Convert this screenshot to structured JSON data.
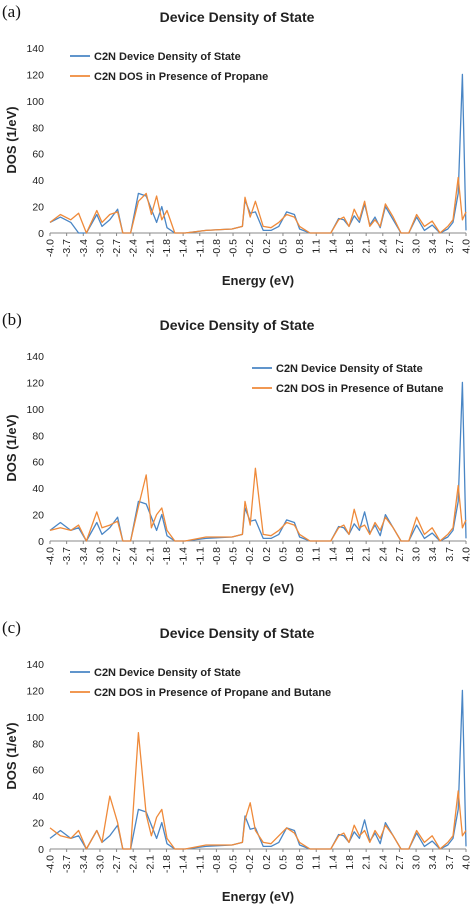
{
  "chart_data": [
    {
      "panel_label": "(a)",
      "type": "line",
      "title": "Device Density of State",
      "xlabel": "Energy (eV)",
      "ylabel": "DOS (1/eV)",
      "ylim": [
        0,
        140
      ],
      "xlim": [
        -4.0,
        4.0
      ],
      "yticks": [
        "0",
        "20",
        "40",
        "60",
        "80",
        "100",
        "120",
        "140"
      ],
      "xticks": [
        "-4.0",
        "-3.7",
        "-3.4",
        "-3.0",
        "-2.7",
        "-2.4",
        "-2.1",
        "-1.8",
        "-1.4",
        "-1.1",
        "-0.8",
        "-0.5",
        "-0.2",
        "0.2",
        "0.5",
        "0.8",
        "1.1",
        "1.4",
        "1.8",
        "2.1",
        "2.4",
        "2.7",
        "3.0",
        "3.4",
        "3.7",
        "4.0"
      ],
      "grid": false,
      "legend_position": "top-left",
      "series": [
        {
          "name": "C2N Device Density of State",
          "color": "#4a86c5",
          "x": [
            -4.0,
            -3.8,
            -3.6,
            -3.45,
            -3.3,
            -3.1,
            -3.0,
            -2.85,
            -2.7,
            -2.6,
            -2.45,
            -2.3,
            -2.15,
            -2.05,
            -1.95,
            -1.85,
            -1.75,
            -1.6,
            -1.4,
            -1.0,
            -0.5,
            -0.3,
            -0.25,
            -0.15,
            -0.05,
            0.1,
            0.25,
            0.4,
            0.55,
            0.7,
            0.8,
            1.0,
            1.2,
            1.4,
            1.55,
            1.65,
            1.75,
            1.85,
            1.95,
            2.05,
            2.15,
            2.25,
            2.35,
            2.45,
            2.6,
            2.75,
            2.9,
            3.05,
            3.2,
            3.35,
            3.5,
            3.65,
            3.75,
            3.85,
            3.93,
            4.0
          ],
          "y": [
            8,
            12,
            8,
            0,
            0,
            14,
            5,
            10,
            18,
            0,
            0,
            30,
            28,
            18,
            8,
            20,
            4,
            0,
            0,
            2,
            3,
            5,
            25,
            15,
            16,
            2,
            2,
            5,
            16,
            14,
            3,
            0,
            0,
            0,
            11,
            10,
            5,
            13,
            8,
            22,
            6,
            12,
            4,
            20,
            10,
            0,
            0,
            12,
            2,
            6,
            0,
            3,
            8,
            30,
            120,
            2
          ]
        },
        {
          "name": "C2N DOS in Presence of Propane",
          "color": "#ef8a3a",
          "x": [
            -4.0,
            -3.8,
            -3.6,
            -3.45,
            -3.3,
            -3.1,
            -3.0,
            -2.85,
            -2.7,
            -2.6,
            -2.45,
            -2.3,
            -2.15,
            -2.05,
            -1.95,
            -1.85,
            -1.75,
            -1.6,
            -1.4,
            -1.0,
            -0.5,
            -0.3,
            -0.25,
            -0.15,
            -0.05,
            0.1,
            0.25,
            0.4,
            0.55,
            0.7,
            0.8,
            1.0,
            1.2,
            1.4,
            1.55,
            1.65,
            1.75,
            1.85,
            1.95,
            2.05,
            2.15,
            2.25,
            2.35,
            2.45,
            2.6,
            2.75,
            2.9,
            3.05,
            3.2,
            3.35,
            3.5,
            3.65,
            3.75,
            3.85,
            3.93,
            4.0
          ],
          "y": [
            8,
            14,
            10,
            15,
            0,
            17,
            8,
            14,
            16,
            0,
            0,
            24,
            30,
            14,
            28,
            10,
            17,
            0,
            0,
            2,
            3,
            5,
            27,
            12,
            24,
            5,
            4,
            8,
            14,
            12,
            5,
            0,
            0,
            0,
            10,
            12,
            5,
            18,
            10,
            24,
            5,
            10,
            5,
            22,
            12,
            0,
            0,
            14,
            5,
            9,
            0,
            5,
            10,
            42,
            10,
            16
          ]
        }
      ]
    },
    {
      "panel_label": "(b)",
      "type": "line",
      "title": "Device Density of State",
      "xlabel": "Energy (eV)",
      "ylabel": "DOS (1/eV)",
      "ylim": [
        0,
        140
      ],
      "xlim": [
        -4.0,
        4.0
      ],
      "yticks": [
        "0",
        "20",
        "40",
        "60",
        "80",
        "100",
        "120",
        "140"
      ],
      "xticks": [
        "-4.0",
        "-3.7",
        "-3.4",
        "-3.0",
        "-2.7",
        "-2.4",
        "-2.1",
        "-1.8",
        "-1.4",
        "-1.1",
        "-0.8",
        "-0.5",
        "-0.2",
        "0.2",
        "0.5",
        "0.8",
        "1.1",
        "1.4",
        "1.8",
        "2.1",
        "2.4",
        "2.7",
        "3.0",
        "3.4",
        "3.7",
        "4.0"
      ],
      "grid": false,
      "legend_position": "top-right",
      "series": [
        {
          "name": "C2N Device Density of State",
          "color": "#4a86c5",
          "x": [
            -4.0,
            -3.8,
            -3.6,
            -3.45,
            -3.3,
            -3.1,
            -3.0,
            -2.85,
            -2.7,
            -2.6,
            -2.45,
            -2.3,
            -2.15,
            -2.05,
            -1.95,
            -1.85,
            -1.75,
            -1.6,
            -1.4,
            -1.0,
            -0.5,
            -0.3,
            -0.25,
            -0.15,
            -0.05,
            0.1,
            0.25,
            0.4,
            0.55,
            0.7,
            0.8,
            1.0,
            1.2,
            1.4,
            1.55,
            1.65,
            1.75,
            1.85,
            1.95,
            2.05,
            2.15,
            2.25,
            2.35,
            2.45,
            2.6,
            2.75,
            2.9,
            3.05,
            3.2,
            3.35,
            3.5,
            3.65,
            3.75,
            3.85,
            3.93,
            4.0
          ],
          "y": [
            8,
            14,
            8,
            10,
            0,
            14,
            5,
            10,
            18,
            0,
            0,
            30,
            28,
            18,
            8,
            20,
            4,
            0,
            0,
            2,
            3,
            5,
            25,
            15,
            16,
            2,
            2,
            5,
            16,
            14,
            3,
            0,
            0,
            0,
            11,
            10,
            5,
            13,
            8,
            22,
            6,
            12,
            4,
            20,
            10,
            0,
            0,
            12,
            2,
            6,
            0,
            3,
            8,
            30,
            120,
            2
          ]
        },
        {
          "name": "C2N DOS in Presence of Butane",
          "color": "#ef8a3a",
          "x": [
            -4.0,
            -3.8,
            -3.6,
            -3.45,
            -3.3,
            -3.1,
            -3.0,
            -2.85,
            -2.7,
            -2.6,
            -2.45,
            -2.3,
            -2.15,
            -2.05,
            -1.95,
            -1.85,
            -1.75,
            -1.6,
            -1.4,
            -1.0,
            -0.5,
            -0.3,
            -0.25,
            -0.15,
            -0.05,
            0.1,
            0.25,
            0.4,
            0.55,
            0.7,
            0.8,
            1.0,
            1.2,
            1.4,
            1.55,
            1.65,
            1.75,
            1.85,
            1.95,
            2.05,
            2.15,
            2.25,
            2.35,
            2.45,
            2.6,
            2.75,
            2.9,
            3.05,
            3.2,
            3.35,
            3.5,
            3.65,
            3.75,
            3.85,
            3.93,
            4.0
          ],
          "y": [
            8,
            10,
            8,
            12,
            0,
            22,
            10,
            12,
            15,
            0,
            0,
            26,
            50,
            10,
            20,
            25,
            8,
            0,
            0,
            3,
            3,
            5,
            30,
            12,
            55,
            5,
            4,
            8,
            14,
            12,
            5,
            0,
            0,
            0,
            10,
            12,
            5,
            24,
            10,
            12,
            5,
            14,
            8,
            18,
            10,
            0,
            0,
            18,
            5,
            10,
            0,
            5,
            10,
            42,
            10,
            16
          ]
        }
      ]
    },
    {
      "panel_label": "(c)",
      "type": "line",
      "title": "Device Density of State",
      "xlabel": "Energy (eV)",
      "ylabel": "DOS (1/eV)",
      "ylim": [
        0,
        140
      ],
      "xlim": [
        -4.0,
        4.0
      ],
      "yticks": [
        "0",
        "20",
        "40",
        "60",
        "80",
        "100",
        "120",
        "140"
      ],
      "xticks": [
        "-4.0",
        "-3.7",
        "-3.4",
        "-3.0",
        "-2.7",
        "-2.4",
        "-2.1",
        "-1.8",
        "-1.4",
        "-1.1",
        "-0.8",
        "-0.5",
        "-0.2",
        "0.2",
        "0.5",
        "0.8",
        "1.1",
        "1.4",
        "1.8",
        "2.1",
        "2.4",
        "2.7",
        "3.0",
        "3.4",
        "3.7",
        "4.0"
      ],
      "grid": false,
      "legend_position": "top-left",
      "series": [
        {
          "name": "C2N Device Density of State",
          "color": "#4a86c5",
          "x": [
            -4.0,
            -3.8,
            -3.6,
            -3.45,
            -3.3,
            -3.1,
            -3.0,
            -2.85,
            -2.7,
            -2.6,
            -2.45,
            -2.3,
            -2.15,
            -2.05,
            -1.95,
            -1.85,
            -1.75,
            -1.6,
            -1.4,
            -1.0,
            -0.5,
            -0.3,
            -0.25,
            -0.15,
            -0.05,
            0.1,
            0.25,
            0.4,
            0.55,
            0.7,
            0.8,
            1.0,
            1.2,
            1.4,
            1.55,
            1.65,
            1.75,
            1.85,
            1.95,
            2.05,
            2.15,
            2.25,
            2.35,
            2.45,
            2.6,
            2.75,
            2.9,
            3.05,
            3.2,
            3.35,
            3.5,
            3.65,
            3.75,
            3.85,
            3.93,
            4.0
          ],
          "y": [
            8,
            14,
            8,
            10,
            0,
            14,
            5,
            10,
            18,
            0,
            0,
            30,
            28,
            18,
            8,
            20,
            4,
            0,
            0,
            2,
            3,
            5,
            25,
            15,
            16,
            2,
            2,
            5,
            16,
            14,
            3,
            0,
            0,
            0,
            11,
            10,
            5,
            13,
            8,
            22,
            6,
            12,
            4,
            20,
            10,
            0,
            0,
            12,
            2,
            6,
            0,
            3,
            8,
            30,
            120,
            2
          ]
        },
        {
          "name": "C2N DOS in Presence of Propane and Butane",
          "color": "#ef8a3a",
          "x": [
            -4.0,
            -3.8,
            -3.6,
            -3.45,
            -3.3,
            -3.1,
            -3.0,
            -2.85,
            -2.7,
            -2.6,
            -2.45,
            -2.3,
            -2.15,
            -2.05,
            -1.95,
            -1.85,
            -1.75,
            -1.6,
            -1.4,
            -1.0,
            -0.5,
            -0.3,
            -0.25,
            -0.15,
            -0.05,
            0.1,
            0.25,
            0.4,
            0.55,
            0.7,
            0.8,
            1.0,
            1.2,
            1.4,
            1.55,
            1.65,
            1.75,
            1.85,
            1.95,
            2.05,
            2.15,
            2.25,
            2.35,
            2.45,
            2.6,
            2.75,
            2.9,
            3.05,
            3.2,
            3.35,
            3.5,
            3.65,
            3.75,
            3.85,
            3.93,
            4.0
          ],
          "y": [
            16,
            10,
            8,
            14,
            0,
            14,
            5,
            40,
            20,
            0,
            0,
            88,
            26,
            10,
            24,
            30,
            8,
            0,
            0,
            3,
            3,
            5,
            22,
            35,
            14,
            5,
            4,
            10,
            16,
            12,
            5,
            0,
            0,
            0,
            10,
            12,
            5,
            18,
            10,
            14,
            5,
            14,
            8,
            18,
            10,
            0,
            0,
            14,
            5,
            10,
            0,
            5,
            10,
            44,
            10,
            14
          ]
        }
      ]
    }
  ]
}
